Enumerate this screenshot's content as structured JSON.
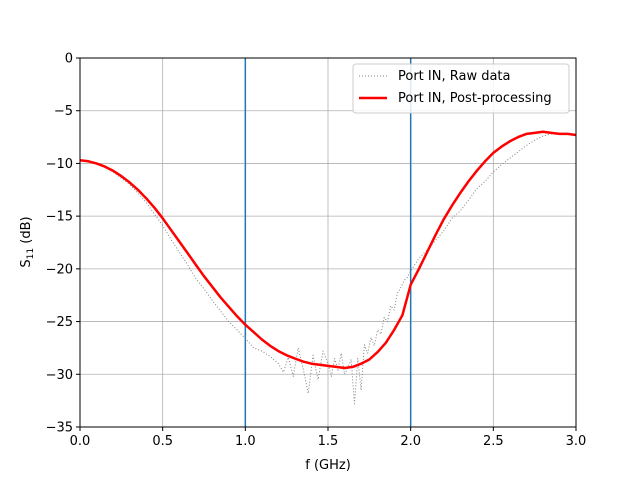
{
  "chart_data": {
    "type": "line",
    "xlabel": "f (GHz)",
    "ylabel_main": "S",
    "ylabel_sub": "11",
    "ylabel_unit": " (dB)",
    "xlim": [
      0,
      3
    ],
    "ylim": [
      -35,
      0
    ],
    "xticks": [
      0,
      0.5,
      1,
      1.5,
      2,
      2.5,
      3
    ],
    "xtick_labels": [
      "0.0",
      "0.5",
      "1.0",
      "1.5",
      "2.0",
      "2.5",
      "3.0"
    ],
    "yticks": [
      0,
      -5,
      -10,
      -15,
      -20,
      -25,
      -30,
      -35
    ],
    "ytick_labels": [
      "0",
      "−5",
      "−10",
      "−15",
      "−20",
      "−25",
      "−30",
      "−35"
    ],
    "grid": true,
    "legend_position": "upper-right",
    "vlines": [
      {
        "x": 1.0,
        "color": "#1f77b4"
      },
      {
        "x": 2.0,
        "color": "#1f77b4"
      }
    ],
    "series": [
      {
        "name": "Port IN, Raw data",
        "color": "#808080",
        "style": "dotted",
        "x": [
          0.0,
          0.05,
          0.1,
          0.15,
          0.2,
          0.25,
          0.3,
          0.35,
          0.4,
          0.45,
          0.5,
          0.55,
          0.6,
          0.65,
          0.7,
          0.75,
          0.8,
          0.85,
          0.9,
          0.95,
          1.0,
          1.05,
          1.1,
          1.15,
          1.2,
          1.23,
          1.26,
          1.29,
          1.32,
          1.35,
          1.38,
          1.41,
          1.44,
          1.47,
          1.5,
          1.52,
          1.54,
          1.56,
          1.58,
          1.6,
          1.62,
          1.64,
          1.66,
          1.68,
          1.7,
          1.72,
          1.74,
          1.76,
          1.78,
          1.8,
          1.82,
          1.84,
          1.86,
          1.88,
          1.9,
          1.92,
          1.94,
          1.96,
          1.98,
          2.0,
          2.05,
          2.1,
          2.15,
          2.2,
          2.25,
          2.3,
          2.35,
          2.4,
          2.45,
          2.5,
          2.55,
          2.6,
          2.65,
          2.7,
          2.75,
          2.8,
          2.85,
          2.9,
          2.95,
          3.0
        ],
        "values": [
          -9.7,
          -9.8,
          -10.0,
          -10.3,
          -10.8,
          -11.4,
          -12.0,
          -12.8,
          -13.7,
          -14.8,
          -15.9,
          -17.2,
          -18.4,
          -19.6,
          -20.9,
          -21.9,
          -23.0,
          -24.0,
          -25.0,
          -25.8,
          -26.6,
          -27.5,
          -27.8,
          -28.3,
          -29.0,
          -29.8,
          -28.4,
          -30.2,
          -27.5,
          -29.5,
          -31.8,
          -28.2,
          -30.5,
          -27.8,
          -29.0,
          -30.2,
          -28.5,
          -29.6,
          -28.0,
          -30.0,
          -29.4,
          -28.6,
          -32.8,
          -28.5,
          -31.5,
          -27.2,
          -28.0,
          -26.5,
          -27.3,
          -25.8,
          -26.2,
          -24.6,
          -25.0,
          -23.5,
          -23.9,
          -22.3,
          -21.8,
          -21.1,
          -20.8,
          -20.2,
          -19.0,
          -18.2,
          -17.3,
          -16.4,
          -15.2,
          -14.5,
          -13.5,
          -12.4,
          -11.7,
          -10.8,
          -10.1,
          -9.5,
          -8.9,
          -8.3,
          -7.8,
          -7.4,
          -7.2,
          -7.1,
          -7.2,
          -7.3
        ]
      },
      {
        "name": "Port IN, Post-processing",
        "color": "#ff0000",
        "style": "solid",
        "x": [
          0.0,
          0.05,
          0.1,
          0.15,
          0.2,
          0.25,
          0.3,
          0.35,
          0.4,
          0.45,
          0.5,
          0.55,
          0.6,
          0.65,
          0.7,
          0.75,
          0.8,
          0.85,
          0.9,
          0.95,
          1.0,
          1.05,
          1.1,
          1.15,
          1.2,
          1.25,
          1.3,
          1.35,
          1.4,
          1.45,
          1.5,
          1.55,
          1.6,
          1.65,
          1.7,
          1.75,
          1.8,
          1.85,
          1.9,
          1.95,
          2.0,
          2.05,
          2.1,
          2.15,
          2.2,
          2.25,
          2.3,
          2.35,
          2.4,
          2.45,
          2.5,
          2.55,
          2.6,
          2.65,
          2.7,
          2.75,
          2.8,
          2.85,
          2.9,
          2.95,
          3.0
        ],
        "values": [
          -9.7,
          -9.8,
          -10.0,
          -10.3,
          -10.7,
          -11.2,
          -11.8,
          -12.5,
          -13.3,
          -14.2,
          -15.2,
          -16.3,
          -17.4,
          -18.5,
          -19.6,
          -20.7,
          -21.7,
          -22.7,
          -23.6,
          -24.5,
          -25.3,
          -26.0,
          -26.7,
          -27.3,
          -27.8,
          -28.2,
          -28.5,
          -28.8,
          -29.0,
          -29.1,
          -29.2,
          -29.3,
          -29.4,
          -29.3,
          -29.0,
          -28.6,
          -27.9,
          -27.0,
          -25.8,
          -24.4,
          -21.5,
          -20.0,
          -18.4,
          -16.8,
          -15.3,
          -14.0,
          -12.8,
          -11.7,
          -10.7,
          -9.8,
          -9.0,
          -8.4,
          -7.9,
          -7.5,
          -7.2,
          -7.1,
          -7.0,
          -7.1,
          -7.2,
          -7.2,
          -7.3
        ]
      }
    ]
  }
}
